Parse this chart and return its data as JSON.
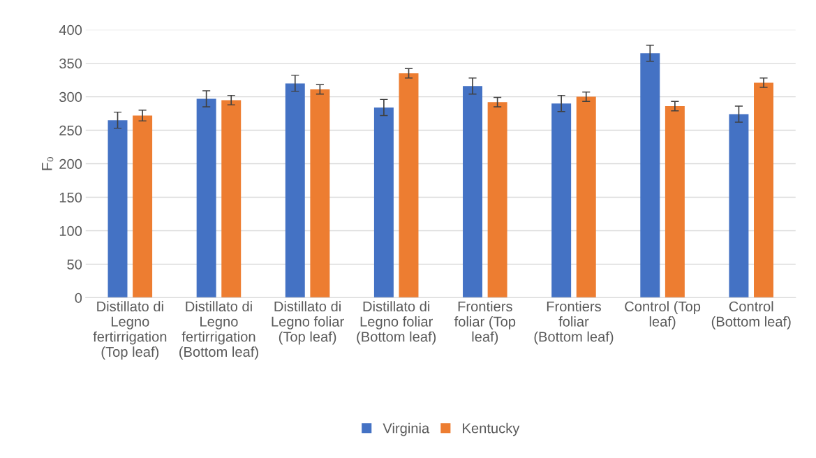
{
  "chart_data": {
    "type": "bar",
    "ylabel": "F₀",
    "categories": [
      "Distillato di Legno fertirrigation (Top leaf)",
      "Distillato di Legno fertirrigation (Bottom leaf)",
      "Distillato di Legno foliar (Top leaf)",
      "Distillato di Legno foliar (Bottom leaf)",
      "Frontiers foliar (Top leaf)",
      "Frontiers foliar (Bottom leaf)",
      "Control (Top leaf)",
      "Control (Bottom leaf)"
    ],
    "series": [
      {
        "name": "Virginia",
        "color": "#4472c4",
        "values": [
          265,
          297,
          320,
          284,
          316,
          290,
          365,
          274
        ],
        "errors": [
          12,
          12,
          12,
          12,
          12,
          12,
          12,
          12
        ]
      },
      {
        "name": "Kentucky",
        "color": "#ed7d31",
        "values": [
          272,
          295,
          311,
          335,
          292,
          300,
          286,
          321
        ],
        "errors": [
          8,
          7,
          7,
          7,
          7,
          7,
          7,
          7
        ]
      }
    ],
    "ylim": [
      0,
      400
    ],
    "yticks": [
      0,
      50,
      100,
      150,
      200,
      250,
      300,
      350,
      400
    ],
    "grid": "y",
    "legend": "bottom"
  }
}
